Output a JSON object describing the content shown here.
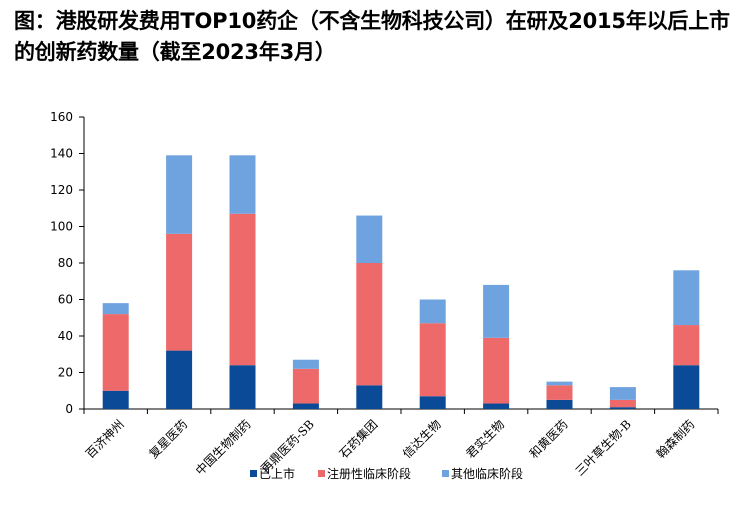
{
  "page": {
    "title": "图：港股研发费用TOP10药企（不含生物科技公司）在研及2015年以后上市的创新药数量（截至2023年3月）"
  },
  "chart_data": {
    "type": "bar",
    "stacked": true,
    "categories": [
      "百济神州",
      "复星医药",
      "中国生物制药",
      "再鼎医药-SB",
      "石药集团",
      "信达生物",
      "君实生物",
      "和黄医药",
      "三叶草生物-B",
      "翰森制药"
    ],
    "series": [
      {
        "name": "已上市",
        "color": "#0B4A96",
        "values": [
          10,
          32,
          24,
          3,
          13,
          7,
          3,
          5,
          1,
          24
        ]
      },
      {
        "name": "注册性临床阶段",
        "color": "#EE6A6A",
        "values": [
          42,
          64,
          83,
          19,
          67,
          40,
          36,
          8,
          4,
          22
        ]
      },
      {
        "name": "其他临床阶段",
        "color": "#6FA3E0",
        "values": [
          6,
          43,
          32,
          5,
          26,
          13,
          29,
          2,
          7,
          30
        ]
      }
    ],
    "ylim": [
      0,
      160
    ],
    "yticks": [
      0,
      20,
      40,
      60,
      80,
      100,
      120,
      140,
      160
    ],
    "grid": false,
    "legend": "bottom"
  }
}
